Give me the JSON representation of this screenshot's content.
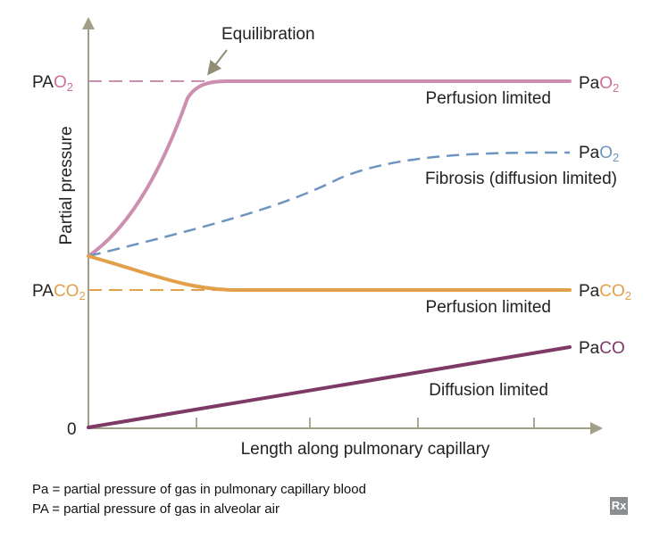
{
  "colors": {
    "axis": "#a29f88",
    "pink": "#cc8faf",
    "blue": "#6e95bf",
    "orange": "#e2a04a",
    "purple": "#7d3a66",
    "text": "#222222",
    "subscript_pink": "#d26d9a",
    "subscript_orange": "#e2a04a"
  },
  "diagram": {
    "y_axis_label": "Partial pressure",
    "x_axis_label": "Length along pulmonary capillary",
    "equilibration_label": "Equilibration",
    "left_labels": {
      "pao2": {
        "main": "PA",
        "sub": "O",
        "subscript": "2"
      },
      "paco2": {
        "main": "PA",
        "sub": "CO",
        "subscript": "2"
      },
      "zero": "0"
    },
    "right_labels": {
      "o2_perfusion": {
        "main": "Pa",
        "sub": "O",
        "subscript": "2"
      },
      "o2_fibrosis": {
        "main": "Pa",
        "sub": "O",
        "subscript": "2"
      },
      "co2": {
        "main": "Pa",
        "sub": "CO",
        "subscript": "2"
      },
      "co": {
        "main": "Pa",
        "sub": "CO"
      }
    },
    "curve_labels": {
      "o2_perfusion": "Perfusion limited",
      "fibrosis": "Fibrosis (diffusion limited)",
      "co2_perfusion": "Perfusion limited",
      "co_diffusion": "Diffusion limited"
    }
  },
  "legend": {
    "line1": "Pa = partial pressure of gas in pulmonary capillary blood",
    "line2": "PA = partial pressure of gas in alveolar air"
  },
  "badge": {
    "label": "Rx"
  }
}
